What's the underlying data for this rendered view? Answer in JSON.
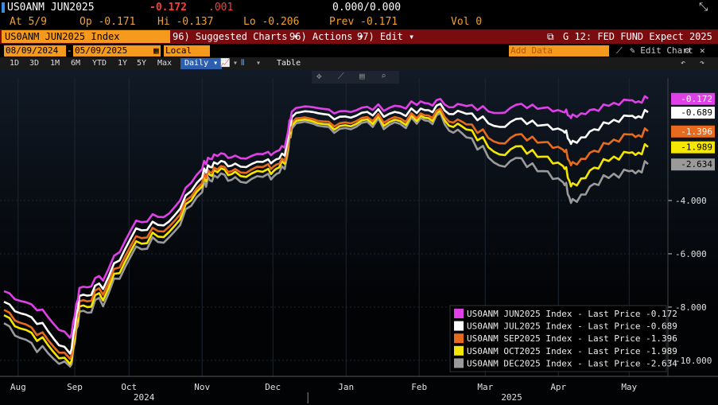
{
  "header": {
    "ticker": "US0ANM JUN2025",
    "last_value": "-0.172",
    "change": ".001",
    "bid_ask": "0.000/0.000",
    "at_label": "At 5/9",
    "open": "Op -0.171",
    "high": "Hi -0.137",
    "low": "Lo -0.206",
    "prev": "Prev -0.171",
    "vol": "Vol 0"
  },
  "menu_bar": {
    "index_label": "US0ANM JUN2025 Index",
    "suggested_charts": "96) Suggested Charts ▾",
    "actions": "96) Actions ▾",
    "edit": "97) Edit ▾",
    "title": "G 12: FED FUND Expect 2025"
  },
  "toolbar": {
    "start_date": "08/09/2024",
    "end_date": "05/09/2025",
    "currency": "Local CCY",
    "add_data": "Add Data",
    "edit_chart": "Edit Chart"
  },
  "periods": [
    "1D",
    "3D",
    "1M",
    "6M",
    "YTD",
    "1Y",
    "5Y",
    "Max"
  ],
  "frequency": "Daily ▾",
  "table_label": "Table",
  "chart_data": {
    "type": "line",
    "x_labels": [
      "Aug",
      "Sep",
      "Oct",
      "Nov",
      "Dec",
      "Jan",
      "Feb",
      "Mar",
      "Apr",
      "May"
    ],
    "year_labels": [
      "2024",
      "2025"
    ],
    "ylim": [
      -10.6,
      0.3
    ],
    "y_ticks": [
      "-4.000",
      "-6.000",
      "-8.000",
      "-10.000"
    ],
    "x": [
      "2024-08-09",
      "2024-08-23",
      "2024-09-06",
      "2024-09-10",
      "2024-09-20",
      "2024-10-04",
      "2024-10-18",
      "2024-11-01",
      "2024-11-06",
      "2024-11-15",
      "2024-11-29",
      "2024-12-06",
      "2024-12-09",
      "2024-12-20",
      "2025-01-03",
      "2025-01-17",
      "2025-01-31",
      "2025-02-10",
      "2025-02-21",
      "2025-03-07",
      "2025-03-21",
      "2025-04-03",
      "2025-04-07",
      "2025-04-18",
      "2025-05-01",
      "2025-05-09"
    ],
    "series": [
      {
        "name": "US0ANM JUN2025 Index - Last Price",
        "color": "#e040e8",
        "last": "-0.172",
        "values": [
          -7.4,
          -8.0,
          -9.2,
          -7.3,
          -6.9,
          -4.8,
          -4.5,
          -2.7,
          -2.3,
          -2.3,
          -2.3,
          -2.0,
          -0.6,
          -0.6,
          -0.6,
          -0.5,
          -0.4,
          -0.3,
          -0.5,
          -0.6,
          -0.4,
          -0.6,
          -0.8,
          -0.5,
          -0.3,
          -0.172
        ]
      },
      {
        "name": "US0ANM JUL2025 Index - Last Price",
        "color": "#ffffff",
        "last": "-0.689",
        "values": [
          -7.8,
          -8.5,
          -9.8,
          -7.6,
          -7.2,
          -5.1,
          -4.8,
          -3.0,
          -2.6,
          -2.6,
          -2.6,
          -2.3,
          -0.8,
          -0.8,
          -0.8,
          -0.7,
          -0.7,
          -0.5,
          -0.8,
          -1.1,
          -1.0,
          -1.3,
          -1.8,
          -1.2,
          -0.9,
          -0.689
        ]
      },
      {
        "name": "US0ANM SEP2025 Index - Last Price",
        "color": "#e86a1c",
        "last": "-1.396",
        "values": [
          -8.1,
          -8.9,
          -10.0,
          -7.8,
          -7.4,
          -5.4,
          -5.0,
          -3.2,
          -2.8,
          -2.8,
          -2.8,
          -2.5,
          -1.0,
          -1.1,
          -1.0,
          -0.9,
          -0.9,
          -0.7,
          -1.2,
          -1.7,
          -1.6,
          -2.0,
          -2.6,
          -2.0,
          -1.6,
          -1.396
        ]
      },
      {
        "name": "US0ANM OCT2025 Index - Last Price",
        "color": "#f5e600",
        "last": "-1.989",
        "values": [
          -8.3,
          -9.1,
          -10.2,
          -8.0,
          -7.6,
          -5.6,
          -5.2,
          -3.3,
          -2.9,
          -2.9,
          -3.0,
          -2.6,
          -1.1,
          -1.2,
          -1.1,
          -1.0,
          -1.0,
          -0.8,
          -1.4,
          -2.1,
          -2.1,
          -2.6,
          -3.4,
          -2.6,
          -2.3,
          -1.989
        ]
      },
      {
        "name": "US0ANM DEC2025 Index - Last Price",
        "color": "#9a9a9a",
        "last": "-2.634",
        "values": [
          -8.6,
          -9.5,
          -10.3,
          -8.2,
          -7.8,
          -5.8,
          -5.4,
          -3.5,
          -3.1,
          -3.1,
          -3.2,
          -2.8,
          -1.2,
          -1.3,
          -1.2,
          -1.1,
          -1.1,
          -0.9,
          -1.7,
          -2.5,
          -2.6,
          -3.2,
          -4.0,
          -3.2,
          -3.0,
          -2.634
        ]
      }
    ],
    "legend_position": "bottom-right"
  }
}
